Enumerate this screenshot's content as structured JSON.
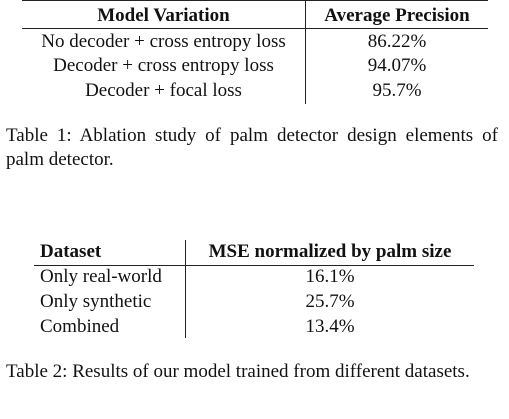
{
  "table1": {
    "headers": [
      "Model Variation",
      "Average Precision"
    ],
    "rows": [
      [
        "No decoder + cross entropy loss",
        "86.22%"
      ],
      [
        "Decoder + cross entropy loss",
        "94.07%"
      ],
      [
        "Decoder + focal loss",
        "95.7%"
      ]
    ],
    "caption": "Table 1: Ablation study of palm detector design elements of palm detector."
  },
  "table2": {
    "headers": [
      "Dataset",
      "MSE normalized by palm size"
    ],
    "rows": [
      [
        "Only real-world",
        "16.1%"
      ],
      [
        "Only synthetic",
        "25.7%"
      ],
      [
        "Combined",
        "13.4%"
      ]
    ],
    "caption": "Table 2: Results of our model trained from different datasets."
  }
}
